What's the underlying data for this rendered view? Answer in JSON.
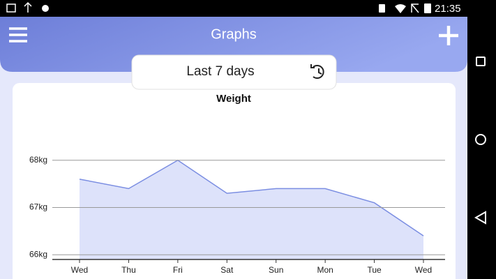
{
  "status_bar": {
    "time": "21:35"
  },
  "app_bar": {
    "title": "Graphs",
    "range": "Last 7 days"
  },
  "chart_data": {
    "type": "area",
    "title": "Weight",
    "categories": [
      "Wed",
      "Thu",
      "Fri",
      "Sat",
      "Sun",
      "Mon",
      "Tue",
      "Wed"
    ],
    "values": [
      67.6,
      67.4,
      68.0,
      67.3,
      67.4,
      67.4,
      67.1,
      66.4
    ],
    "color": "#7b8ee2",
    "fill": "#dde2fa",
    "ylim": [
      65.9,
      69
    ],
    "yticks": [
      {
        "value": 66,
        "label": "66kg"
      },
      {
        "value": 67,
        "label": "67kg"
      },
      {
        "value": 68,
        "label": "68kg"
      }
    ],
    "grid": true
  }
}
